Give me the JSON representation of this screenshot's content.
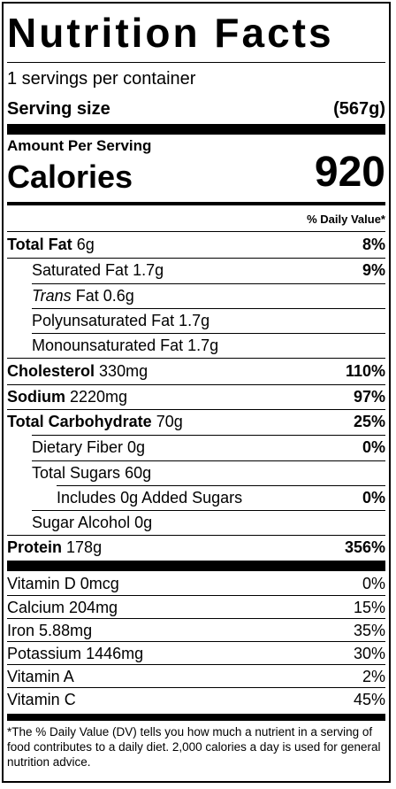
{
  "title": "Nutrition Facts",
  "servings_per_container": "1 servings per container",
  "serving_size": {
    "label": "Serving size",
    "value": "(567g)"
  },
  "amount_per_serving": "Amount Per Serving",
  "calories": {
    "label": "Calories",
    "value": "920"
  },
  "daily_value_header": "% Daily Value*",
  "nutrients": [
    {
      "name": "Total Fat",
      "amount": "6g",
      "dv": "8%"
    },
    {
      "name": "Saturated Fat",
      "amount": "1.7g",
      "dv": "9%"
    },
    {
      "name_prefix": "Trans",
      "name": "Fat",
      "amount": "0.6g",
      "dv": ""
    },
    {
      "name": "Polyunsaturated Fat",
      "amount": "1.7g",
      "dv": ""
    },
    {
      "name": "Monounsaturated Fat",
      "amount": "1.7g",
      "dv": ""
    },
    {
      "name": "Cholesterol",
      "amount": "330mg",
      "dv": "110%"
    },
    {
      "name": "Sodium",
      "amount": "2220mg",
      "dv": "97%"
    },
    {
      "name": "Total Carbohydrate",
      "amount": "70g",
      "dv": "25%"
    },
    {
      "name": "Dietary Fiber",
      "amount": "0g",
      "dv": "0%"
    },
    {
      "name": "Total Sugars",
      "amount": "60g",
      "dv": ""
    },
    {
      "name": "Includes",
      "amount": "0g Added Sugars",
      "dv": "0%"
    },
    {
      "name": "Sugar Alcohol",
      "amount": "0g",
      "dv": ""
    },
    {
      "name": "Protein",
      "amount": "178g",
      "dv": "356%"
    }
  ],
  "vitamins": [
    {
      "name": "Vitamin D",
      "amount": "0mcg",
      "dv": "0%"
    },
    {
      "name": "Calcium",
      "amount": "204mg",
      "dv": "15%"
    },
    {
      "name": "Iron",
      "amount": "5.88mg",
      "dv": "35%"
    },
    {
      "name": "Potassium",
      "amount": "1446mg",
      "dv": "30%"
    },
    {
      "name": "Vitamin A",
      "amount": "",
      "dv": "2%"
    },
    {
      "name": "Vitamin C",
      "amount": "",
      "dv": "45%"
    }
  ],
  "footnote": "*The % Daily Value (DV) tells you how much a nutrient in a serving of food contributes to a daily diet. 2,000 calories a day is used for general nutrition advice."
}
